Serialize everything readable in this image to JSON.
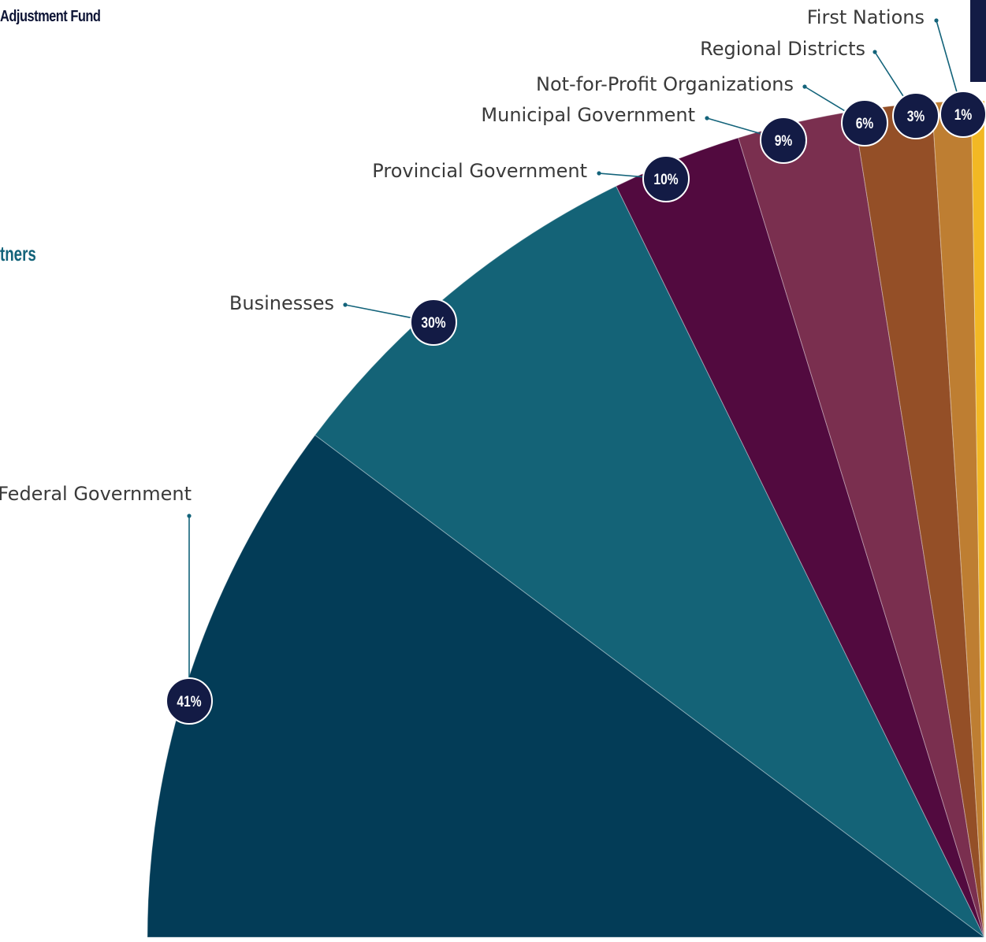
{
  "header": {
    "title": "Adjustment Fund"
  },
  "section": {
    "heading": "tners"
  },
  "chart_data": {
    "type": "pie",
    "title": "",
    "slices": [
      {
        "label": "Federal Government",
        "value": 41,
        "pct_label": "41%",
        "color": "#033c57"
      },
      {
        "label": "Businesses",
        "value": 30,
        "pct_label": "30%",
        "color": "#146377"
      },
      {
        "label": "Provincial Government",
        "value": 10,
        "pct_label": "10%",
        "color": "#520a3f"
      },
      {
        "label": "Municipal Government",
        "value": 9,
        "pct_label": "9%",
        "color": "#7a2f4f"
      },
      {
        "label": "Not-for-Profit Organizations",
        "value": 6,
        "pct_label": "6%",
        "color": "#944f27"
      },
      {
        "label": "Regional Districts",
        "value": 3,
        "pct_label": "3%",
        "color": "#be7e32"
      },
      {
        "label": "First Nations",
        "value": 1,
        "pct_label": "1%",
        "color": "#f2b824"
      }
    ],
    "marker_color": "#131b45",
    "leader_color": "#13637a",
    "side_bar_color": "#131b45"
  }
}
